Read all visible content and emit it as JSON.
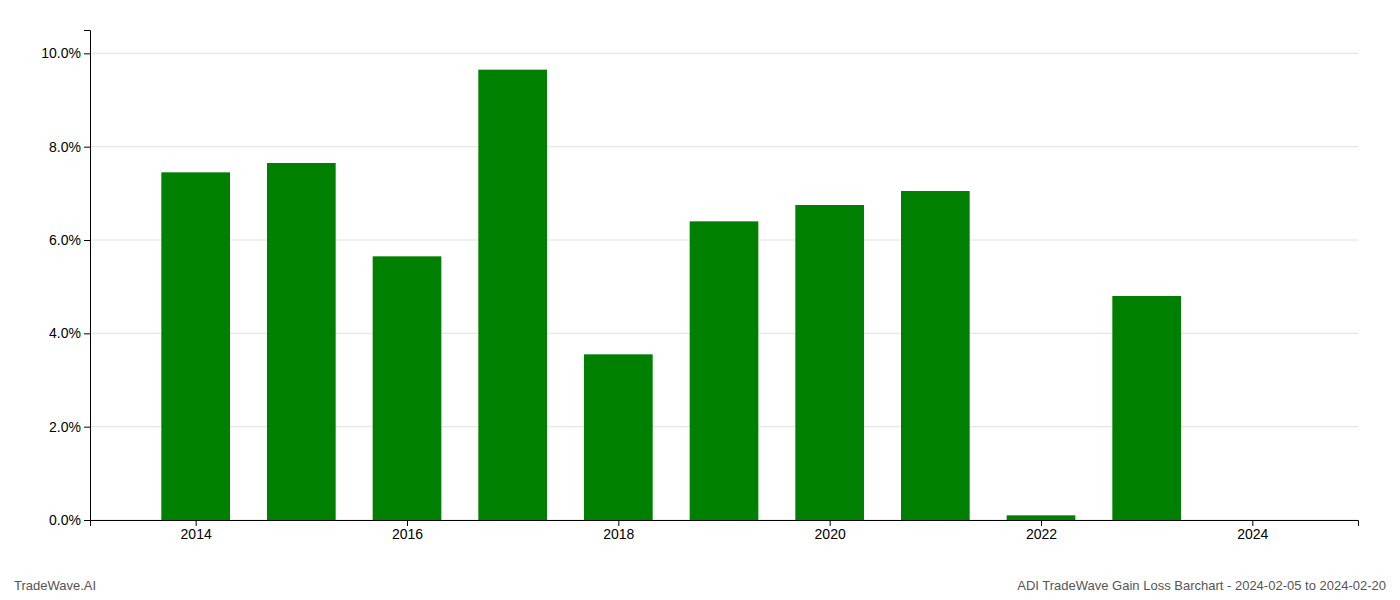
{
  "chart_data": {
    "type": "bar",
    "title": "ADI TradeWave Gain Loss Barchart - 2024-02-05 to 2024-02-20",
    "annotations": [
      "TradeWave.AI"
    ],
    "x": [
      2014,
      2015,
      2016,
      2017,
      2018,
      2019,
      2020,
      2021,
      2022,
      2023
    ],
    "values": [
      0.0745,
      0.0765,
      0.0565,
      0.0965,
      0.0355,
      0.064,
      0.0675,
      0.0705,
      0.001,
      0.048
    ],
    "color": "#008000",
    "xlim": [
      2013.0,
      2025.0
    ],
    "xticks": [
      2014,
      2016,
      2018,
      2020,
      2022,
      2024
    ],
    "ylim": [
      0,
      0.105
    ],
    "yticks": [
      {
        "value": 0.0,
        "label": "0.0%"
      },
      {
        "value": 0.02,
        "label": "2.0%"
      },
      {
        "value": 0.04,
        "label": "4.0%"
      },
      {
        "value": 0.06,
        "label": "6.0%"
      },
      {
        "value": 0.08,
        "label": "8.0%"
      },
      {
        "value": 0.1,
        "label": "10.0%"
      }
    ],
    "grid": true
  }
}
